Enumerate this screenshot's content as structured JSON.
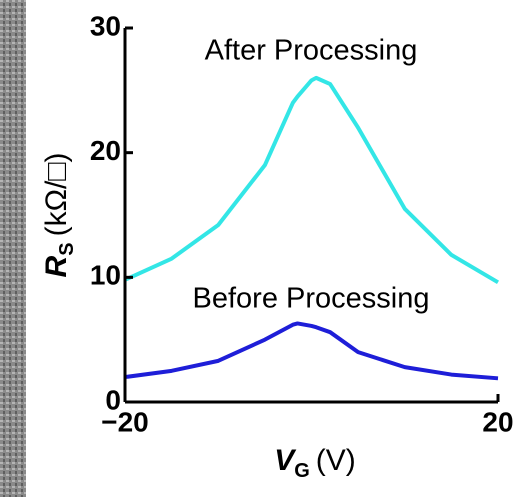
{
  "chart_data": {
    "type": "line",
    "annotations": [
      "After Processing",
      "Before Processing"
    ],
    "xlabel": "V",
    "xlabel_sub": "G",
    "xlabel_unit": "(V)",
    "ylabel": "R",
    "ylabel_sub": "S",
    "ylabel_unit": "(kΩ/□)",
    "x": [
      -20,
      -15,
      -10,
      -5,
      -2,
      -1.5,
      0,
      0.5,
      2,
      5,
      10,
      15,
      20
    ],
    "series": [
      {
        "name": "After Processing",
        "color": "#33e6e6",
        "values": [
          9.8,
          11.5,
          14.2,
          19,
          24,
          24.5,
          25.8,
          26,
          25.5,
          22,
          15.5,
          11.8,
          9.6
        ]
      },
      {
        "name": "Before Processing",
        "color": "#1e1ed8",
        "values": [
          2.0,
          2.5,
          3.3,
          5,
          6.2,
          6.3,
          6.1,
          6.0,
          5.6,
          4,
          2.8,
          2.2,
          1.9
        ]
      }
    ],
    "xlim": [
      -20,
      20
    ],
    "xticks": [
      -20,
      20
    ],
    "ylim": [
      0,
      30
    ],
    "yticks": [
      0,
      10,
      20,
      30
    ]
  }
}
